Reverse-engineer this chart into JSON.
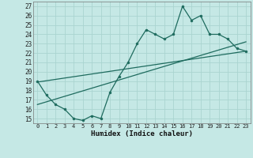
{
  "xlabel": "Humidex (Indice chaleur)",
  "bg_color": "#c5e8e5",
  "grid_color": "#aad4d0",
  "line_color": "#1e6b5e",
  "xlim": [
    -0.5,
    23.5
  ],
  "ylim": [
    14.5,
    27.5
  ],
  "xticks": [
    0,
    1,
    2,
    3,
    4,
    5,
    6,
    7,
    8,
    9,
    10,
    11,
    12,
    13,
    14,
    15,
    16,
    17,
    18,
    19,
    20,
    21,
    22,
    23
  ],
  "yticks": [
    15,
    16,
    17,
    18,
    19,
    20,
    21,
    22,
    23,
    24,
    25,
    26,
    27
  ],
  "main_x": [
    0,
    1,
    2,
    3,
    4,
    5,
    6,
    7,
    8,
    9,
    10,
    11,
    12,
    13,
    14,
    15,
    16,
    17,
    18,
    19,
    20,
    21,
    22,
    23
  ],
  "main_y": [
    19,
    17.5,
    16.5,
    16,
    15.0,
    14.8,
    15.3,
    15.0,
    17.8,
    19.5,
    21.0,
    23.0,
    24.5,
    24.0,
    23.5,
    24.0,
    27.0,
    25.5,
    26.0,
    24.0,
    24.0,
    23.5,
    22.5,
    22.2
  ],
  "line1_x": [
    0,
    23
  ],
  "line1_y": [
    18.9,
    22.2
  ],
  "line2_x": [
    0,
    23
  ],
  "line2_y": [
    16.5,
    23.2
  ]
}
